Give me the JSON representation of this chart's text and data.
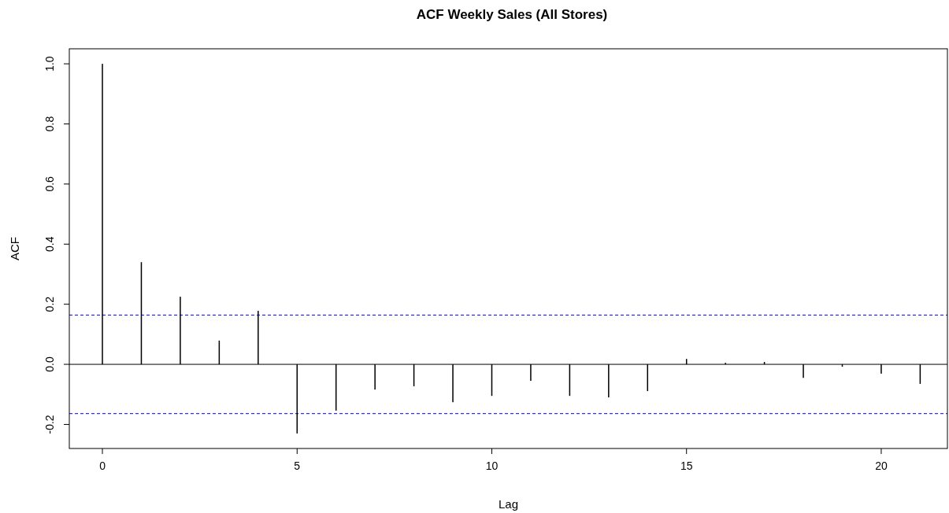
{
  "chart_data": {
    "type": "bar",
    "title": "ACF Weekly Sales (All Stores)",
    "xlabel": "Lag",
    "ylabel": "ACF",
    "x": [
      0,
      1,
      2,
      3,
      4,
      5,
      6,
      7,
      8,
      9,
      10,
      11,
      12,
      13,
      14,
      15,
      16,
      17,
      18,
      19,
      20,
      21
    ],
    "series": [
      {
        "color": "#000000",
        "values": [
          1.0,
          0.34,
          0.225,
          0.079,
          0.178,
          -0.23,
          -0.154,
          -0.084,
          -0.073,
          -0.126,
          -0.105,
          -0.055,
          -0.105,
          -0.11,
          -0.089,
          0.018,
          0.005,
          0.008,
          -0.045,
          -0.008,
          -0.031,
          -0.065
        ]
      }
    ],
    "xlim": [
      -0.85,
      21.7
    ],
    "ylim": [
      -0.28,
      1.05
    ],
    "xticks": [
      0,
      5,
      10,
      15,
      20
    ],
    "yticks": [
      -0.2,
      {
        "value": 0,
        "label": "0.0"
      },
      0.2,
      0.4,
      0.6,
      0.8,
      {
        "value": 1,
        "label": "1.0"
      }
    ],
    "ref_lines": [
      {
        "axis": "y",
        "value": 0,
        "color": "#000000",
        "line_style": "solid"
      },
      {
        "axis": "y",
        "value": 0.164,
        "color": "#0000ff",
        "line_style": "dashed"
      },
      {
        "axis": "y",
        "value": -0.164,
        "color": "#0000ff",
        "line_style": "dashed"
      }
    ],
    "grid": false
  }
}
